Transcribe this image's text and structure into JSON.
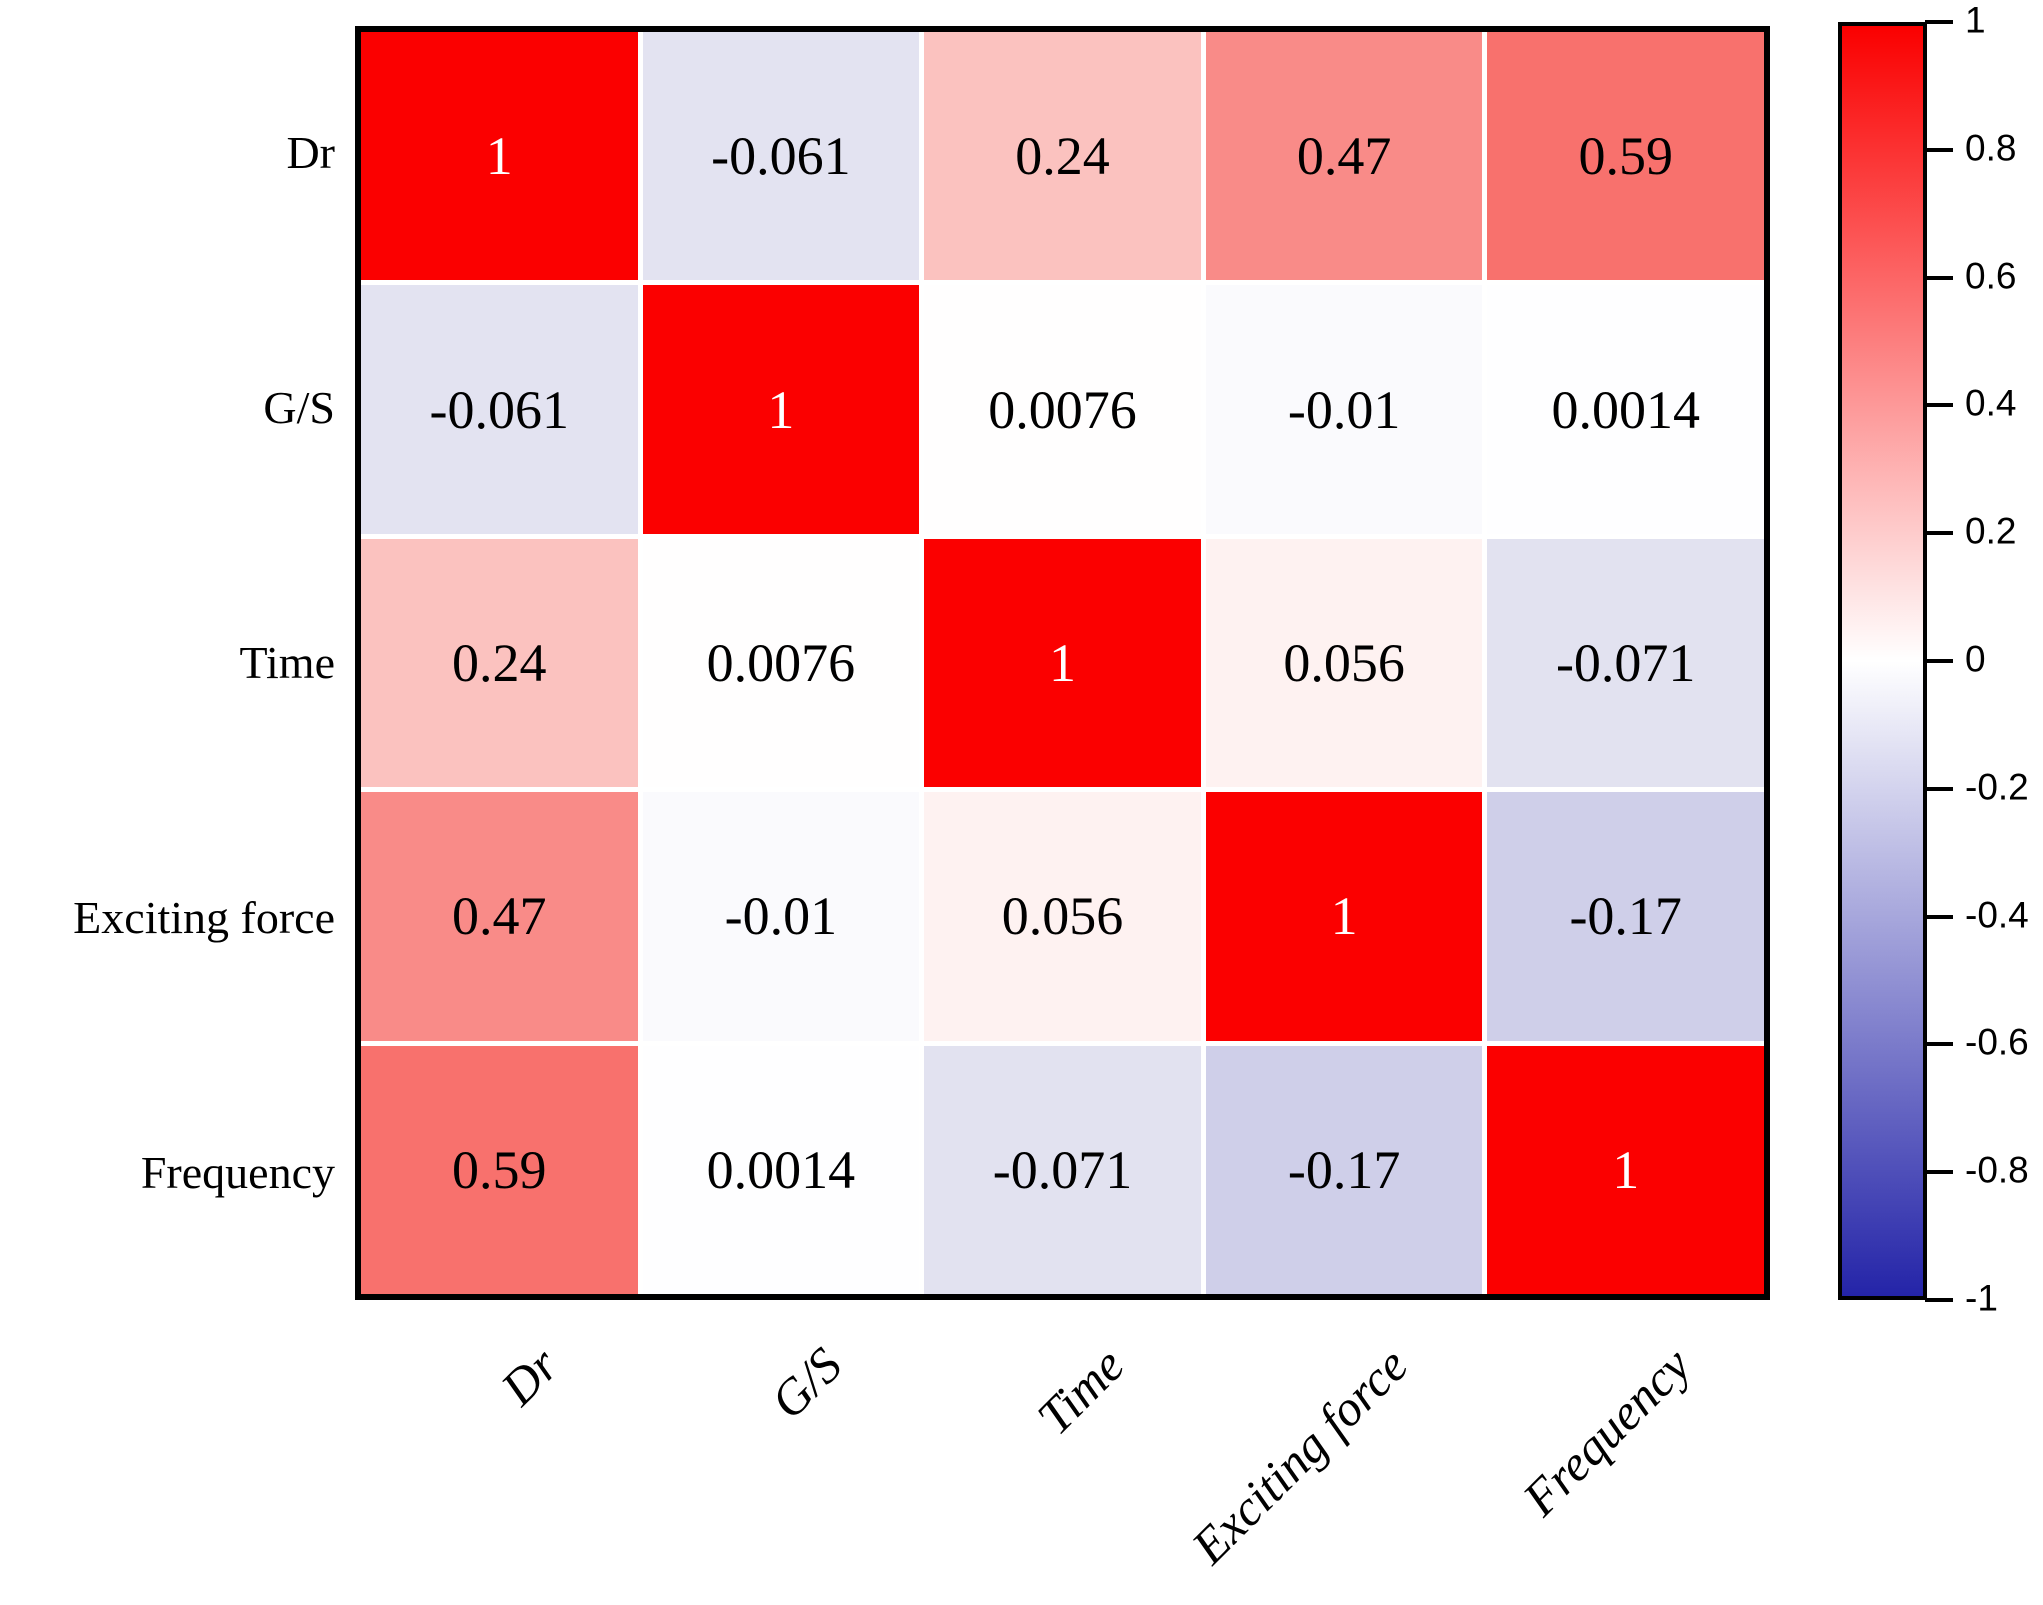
{
  "chart_data": {
    "type": "heatmap",
    "title": "",
    "variables": [
      "Dr",
      "G/S",
      "Time",
      "Exciting force",
      "Frequency"
    ],
    "matrix": [
      [
        1,
        -0.061,
        0.24,
        0.47,
        0.59
      ],
      [
        -0.061,
        1,
        0.0076,
        -0.01,
        0.0014
      ],
      [
        0.24,
        0.0076,
        1,
        0.056,
        -0.071
      ],
      [
        0.47,
        -0.01,
        0.056,
        1,
        -0.17
      ],
      [
        0.59,
        0.0014,
        -0.071,
        -0.17,
        1
      ]
    ],
    "cell_colors": [
      [
        "#fb0000",
        "#e3e3f1",
        "#fbc2bf",
        "#f98b88",
        "#f8716d"
      ],
      [
        "#e3e3f1",
        "#fb0000",
        "#fffefe",
        "#fafafd",
        "#fefeff"
      ],
      [
        "#fbc2bf",
        "#fffefe",
        "#fb0000",
        "#fef2f1",
        "#e2e2f0"
      ],
      [
        "#f98b88",
        "#fafafd",
        "#fef2f1",
        "#fb0000",
        "#cfcfe9"
      ],
      [
        "#f8716d",
        "#fefeff",
        "#e2e2f0",
        "#cfcfe9",
        "#fb0000"
      ]
    ],
    "text_color": "#000000",
    "diagonal_text_color": "#ffffff",
    "grid_line_color": "#ffffff",
    "frame_color": "#000000",
    "colorbar": {
      "min": -1,
      "max": 1,
      "ticks": [
        "1",
        "0.8",
        "0.6",
        "0.4",
        "0.2",
        "0",
        "-0.2",
        "-0.4",
        "-0.6",
        "-0.8",
        "-1"
      ],
      "top_color": "#fa0000",
      "mid_color": "#ffffff",
      "bottom_color": "#2424a8"
    }
  }
}
